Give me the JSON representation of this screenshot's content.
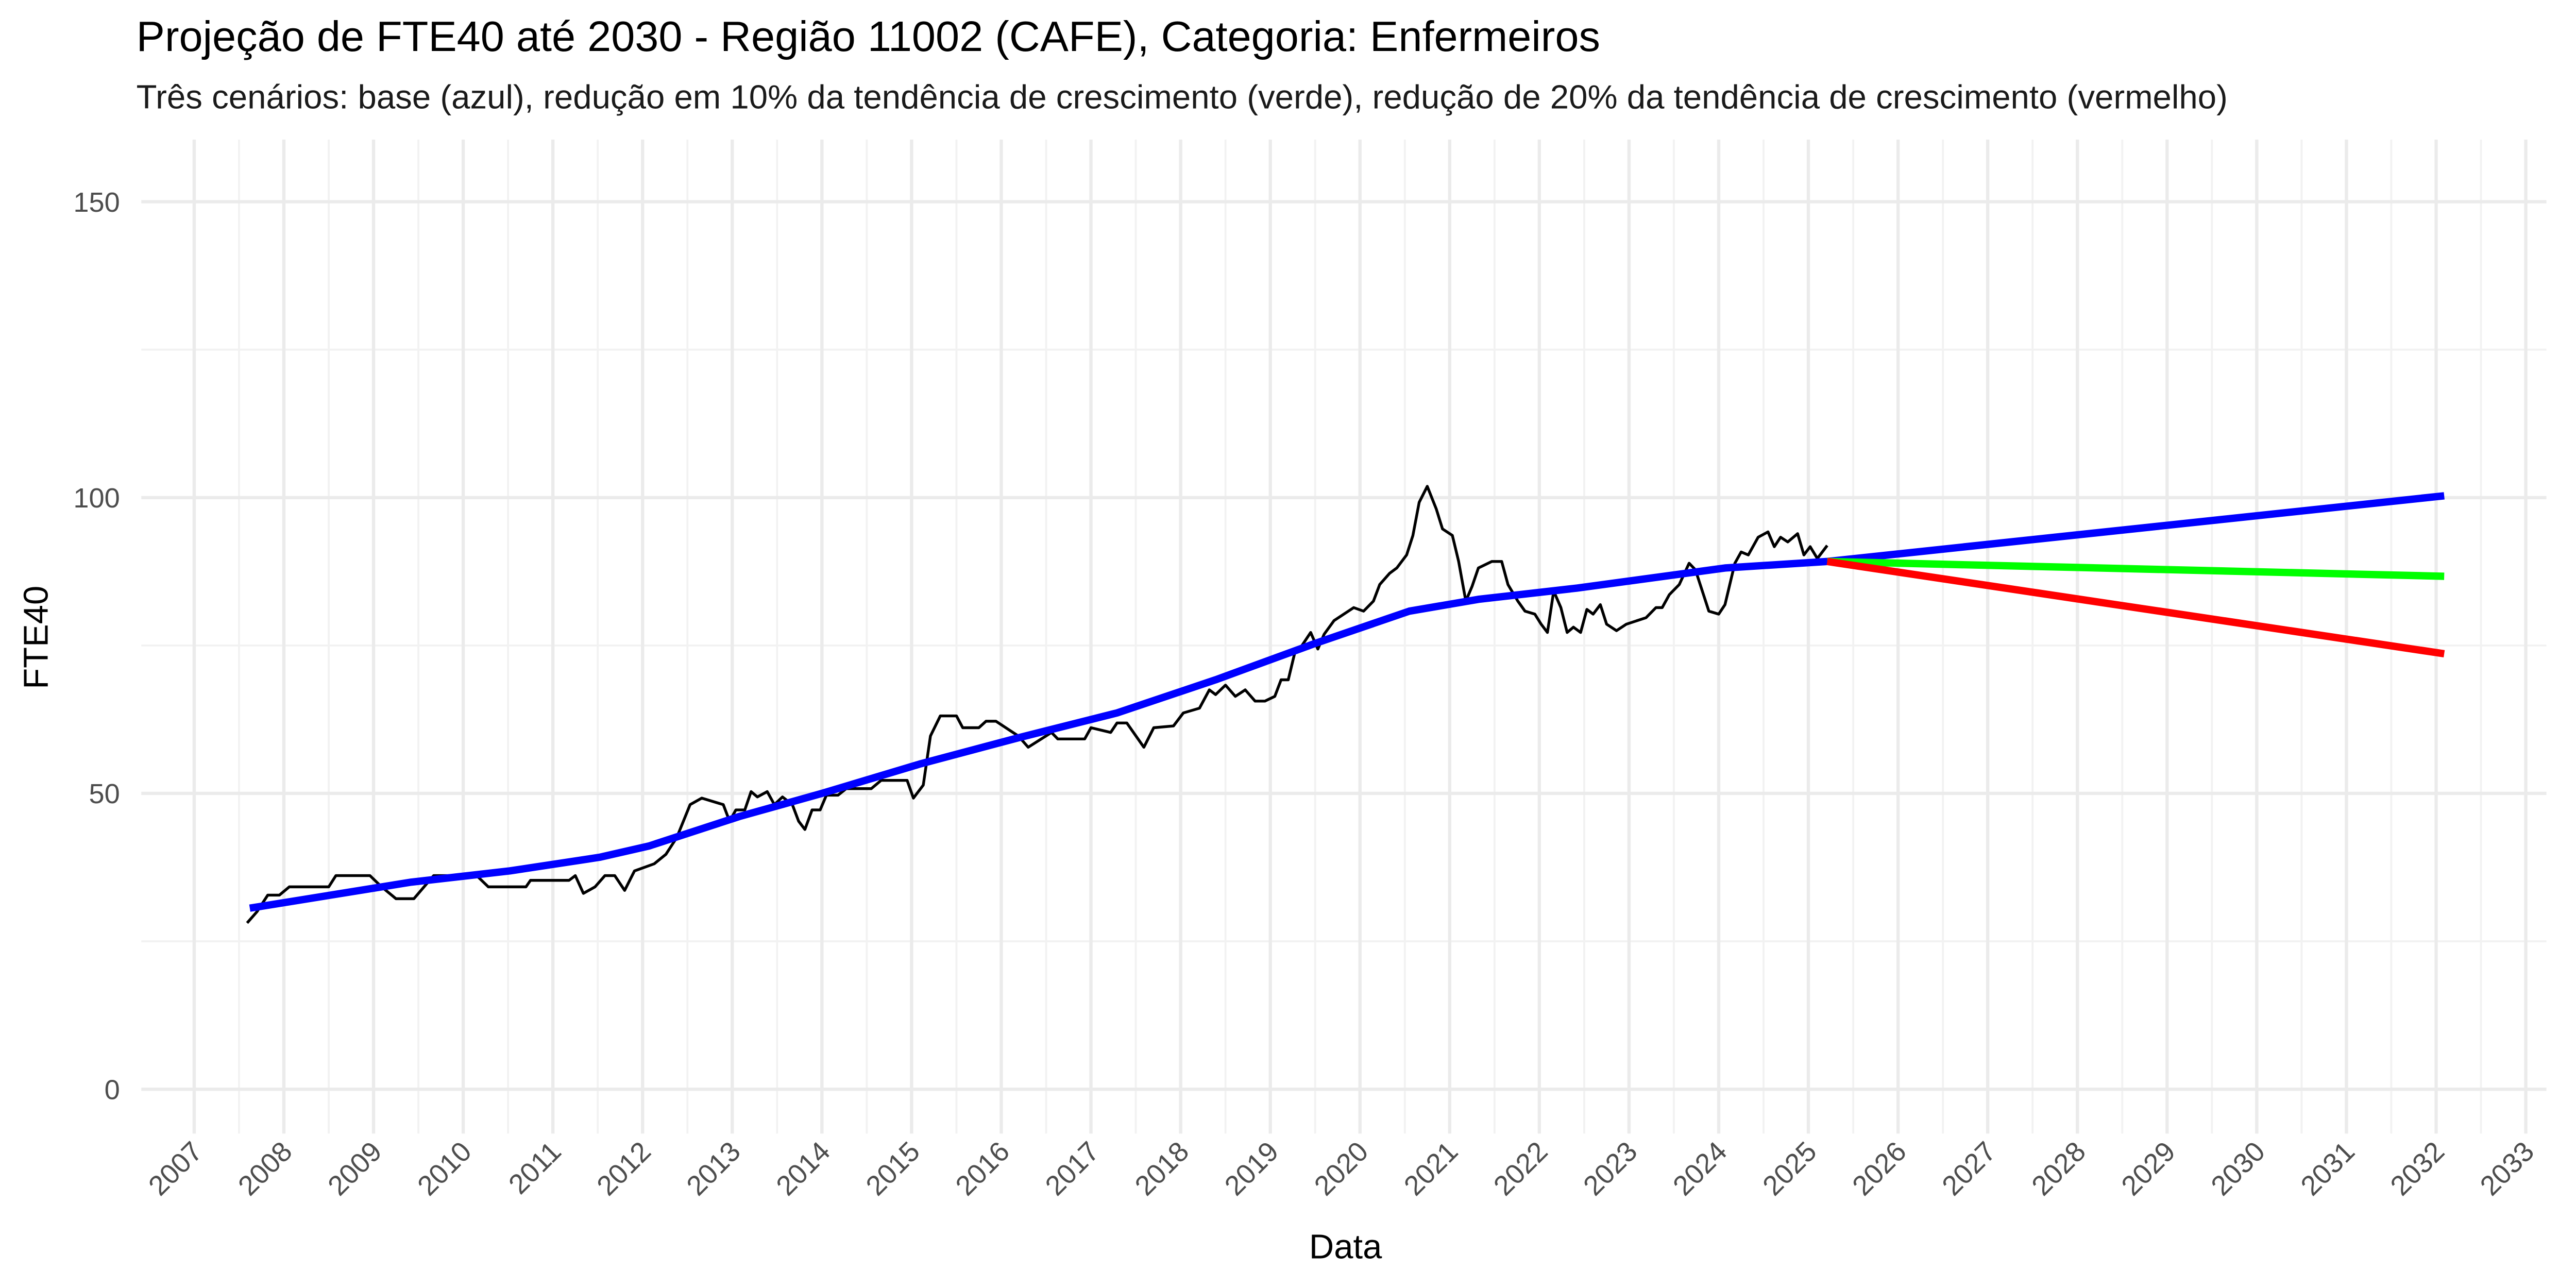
{
  "chart_data": {
    "type": "line",
    "title": "Projeção de FTE40 até 2030 - Região 11002 (CAFE), Categoria: Enfermeiros",
    "subtitle": "Três cenários: base (azul), redução em 10% da tendência de crescimento (verde), redução de 20% da tendência de crescimento (vermelho)",
    "x_label": "Data",
    "y_label": "FTE40",
    "xlim": [
      2006.41,
      2033.23
    ],
    "xticks": [
      2007,
      2008,
      2009,
      2010,
      2011,
      2012,
      2013,
      2014,
      2015,
      2016,
      2017,
      2018,
      2019,
      2020,
      2021,
      2022,
      2023,
      2024,
      2025,
      2026,
      2027,
      2028,
      2029,
      2030,
      2031,
      2032,
      2033
    ],
    "ylim": [
      -7.5,
      160.5
    ],
    "yticks": [
      0,
      50,
      100,
      150
    ],
    "grid": true,
    "minor_grid": true,
    "series": [
      {
        "color": "#000000",
        "x": [
          2007.59,
          2007.7,
          2007.82,
          2007.95,
          2008.06,
          2008.5,
          2008.58,
          2008.96,
          2009.09,
          2009.25,
          2009.45,
          2009.67,
          2009.89,
          2010.15,
          2010.28,
          2010.7,
          2010.75,
          2011.18,
          2011.25,
          2011.34,
          2011.47,
          2011.58,
          2011.69,
          2011.8,
          2011.91,
          2012.13,
          2012.26,
          2012.38,
          2012.53,
          2012.66,
          2012.9,
          2012.97,
          2013.04,
          2013.14,
          2013.21,
          2013.28,
          2013.39,
          2013.47,
          2013.56,
          2013.67,
          2013.74,
          2013.81,
          2013.89,
          2013.98,
          2014.05,
          2014.18,
          2014.27,
          2014.55,
          2014.66,
          2014.95,
          2015.02,
          2015.13,
          2015.21,
          2015.32,
          2015.5,
          2015.57,
          2015.75,
          2015.83,
          2015.94,
          2016.19,
          2016.3,
          2016.56,
          2016.63,
          2016.93,
          2017.0,
          2017.22,
          2017.29,
          2017.4,
          2017.59,
          2017.7,
          2017.92,
          2018.03,
          2018.21,
          2018.32,
          2018.39,
          2018.5,
          2018.61,
          2018.72,
          2018.83,
          2018.94,
          2019.05,
          2019.12,
          2019.2,
          2019.27,
          2019.34,
          2019.45,
          2019.53,
          2019.6,
          2019.71,
          2019.82,
          2019.93,
          2020.04,
          2020.15,
          2020.22,
          2020.33,
          2020.41,
          2020.52,
          2020.59,
          2020.66,
          2020.75,
          2020.85,
          2020.92,
          2021.03,
          2021.1,
          2021.18,
          2021.25,
          2021.32,
          2021.47,
          2021.58,
          2021.65,
          2021.76,
          2021.84,
          2021.95,
          2022.02,
          2022.09,
          2022.16,
          2022.24,
          2022.31,
          2022.38,
          2022.46,
          2022.53,
          2022.6,
          2022.68,
          2022.75,
          2022.86,
          2022.97,
          2023.19,
          2023.3,
          2023.37,
          2023.45,
          2023.56,
          2023.67,
          2023.74,
          2023.89,
          2024.0,
          2024.07,
          2024.18,
          2024.25,
          2024.33,
          2024.44,
          2024.55,
          2024.62,
          2024.69,
          2024.77,
          2024.88,
          2024.95,
          2025.02,
          2025.1,
          2025.21
        ],
        "values": [
          28.1,
          30.0,
          32.8,
          32.8,
          34.2,
          34.2,
          36.1,
          36.1,
          34.2,
          32.2,
          32.2,
          36.1,
          36.1,
          36.1,
          34.2,
          34.2,
          35.3,
          35.3,
          36.1,
          33.1,
          34.2,
          36.1,
          36.1,
          33.6,
          36.9,
          38.1,
          39.7,
          42.5,
          48.1,
          49.2,
          48.1,
          45.3,
          47.2,
          47.2,
          50.3,
          49.4,
          50.3,
          48.1,
          49.4,
          48.1,
          45.3,
          43.9,
          47.2,
          47.2,
          49.7,
          49.7,
          50.8,
          50.8,
          52.2,
          52.2,
          49.2,
          51.4,
          59.7,
          63.1,
          63.1,
          61.1,
          61.1,
          62.2,
          62.2,
          59.7,
          57.8,
          60.3,
          59.2,
          59.2,
          61.1,
          60.3,
          61.9,
          61.9,
          57.8,
          61.1,
          61.4,
          63.6,
          64.4,
          67.5,
          66.7,
          68.3,
          66.4,
          67.5,
          65.6,
          65.6,
          66.4,
          69.2,
          69.2,
          73.6,
          74.7,
          77.2,
          74.4,
          76.9,
          79.2,
          80.3,
          81.4,
          80.8,
          82.5,
          85.3,
          87.2,
          88.1,
          90.3,
          93.6,
          99.2,
          101.9,
          98.1,
          94.7,
          93.6,
          89.2,
          82.5,
          85.0,
          88.1,
          89.2,
          89.2,
          85.3,
          82.5,
          80.8,
          80.3,
          78.6,
          77.2,
          84.2,
          81.4,
          77.2,
          78.1,
          77.2,
          81.1,
          80.3,
          81.9,
          78.6,
          77.5,
          78.6,
          79.7,
          81.4,
          81.4,
          83.6,
          85.3,
          88.9,
          87.8,
          80.8,
          80.3,
          81.9,
          88.9,
          90.8,
          90.3,
          93.3,
          94.2,
          91.7,
          93.3,
          92.5,
          93.9,
          90.3,
          91.7,
          89.7,
          91.9
        ]
      },
      {
        "color": "#0000ff",
        "x": [
          2007.62,
          2009.42,
          2010.52,
          2011.52,
          2012.07,
          2013.08,
          2014.0,
          2015.1,
          2016.19,
          2017.29,
          2018.39,
          2019.49,
          2020.55,
          2021.32,
          2022.42,
          2024.07,
          2025.21,
          2032.09
        ],
        "values": [
          30.6,
          35.0,
          36.9,
          39.2,
          41.1,
          46.1,
          50.0,
          55.0,
          59.4,
          63.6,
          69.2,
          75.3,
          80.8,
          82.8,
          84.7,
          88.1,
          89.2,
          100.3
        ]
      },
      {
        "color": "#00ff00",
        "x": [
          2025.21,
          2032.09
        ],
        "values": [
          89.2,
          86.7
        ]
      },
      {
        "color": "#ff0000",
        "x": [
          2025.21,
          2032.09
        ],
        "values": [
          89.2,
          73.6
        ]
      }
    ]
  }
}
